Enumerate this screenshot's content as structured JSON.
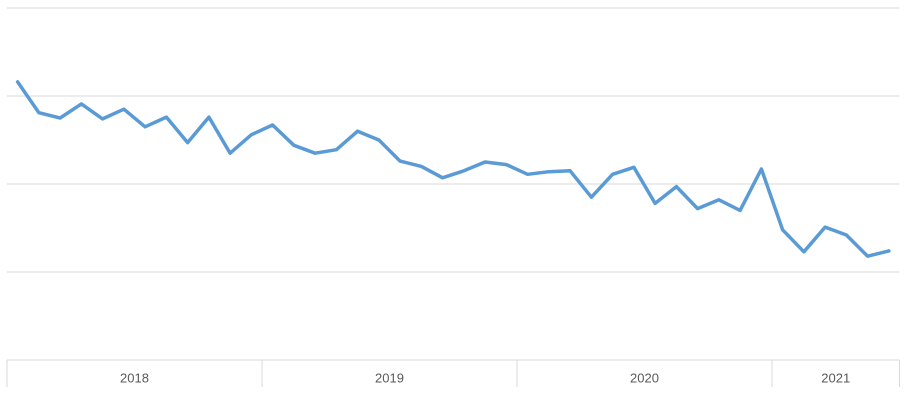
{
  "chart_data": {
    "type": "line",
    "groups": [
      {
        "label": "2018",
        "span": 12
      },
      {
        "label": "2019",
        "span": 12
      },
      {
        "label": "2020",
        "span": 12
      },
      {
        "label": "2021",
        "span": 6
      }
    ],
    "series": [
      {
        "color": "#5b9bd5",
        "values": [
          3.16,
          2.81,
          2.75,
          2.91,
          2.74,
          2.85,
          2.65,
          2.76,
          2.47,
          2.76,
          2.35,
          2.56,
          2.67,
          2.44,
          2.35,
          2.39,
          2.6,
          2.5,
          2.26,
          2.2,
          2.07,
          2.15,
          2.25,
          2.22,
          2.11,
          2.14,
          2.15,
          1.85,
          2.11,
          2.19,
          1.78,
          1.97,
          1.72,
          1.82,
          1.7,
          2.17,
          1.48,
          1.23,
          1.51,
          1.42,
          1.18,
          1.24
        ]
      }
    ],
    "ylim": [
      0,
      4
    ],
    "yticks": [
      1,
      2,
      3,
      4
    ],
    "grid": true
  }
}
